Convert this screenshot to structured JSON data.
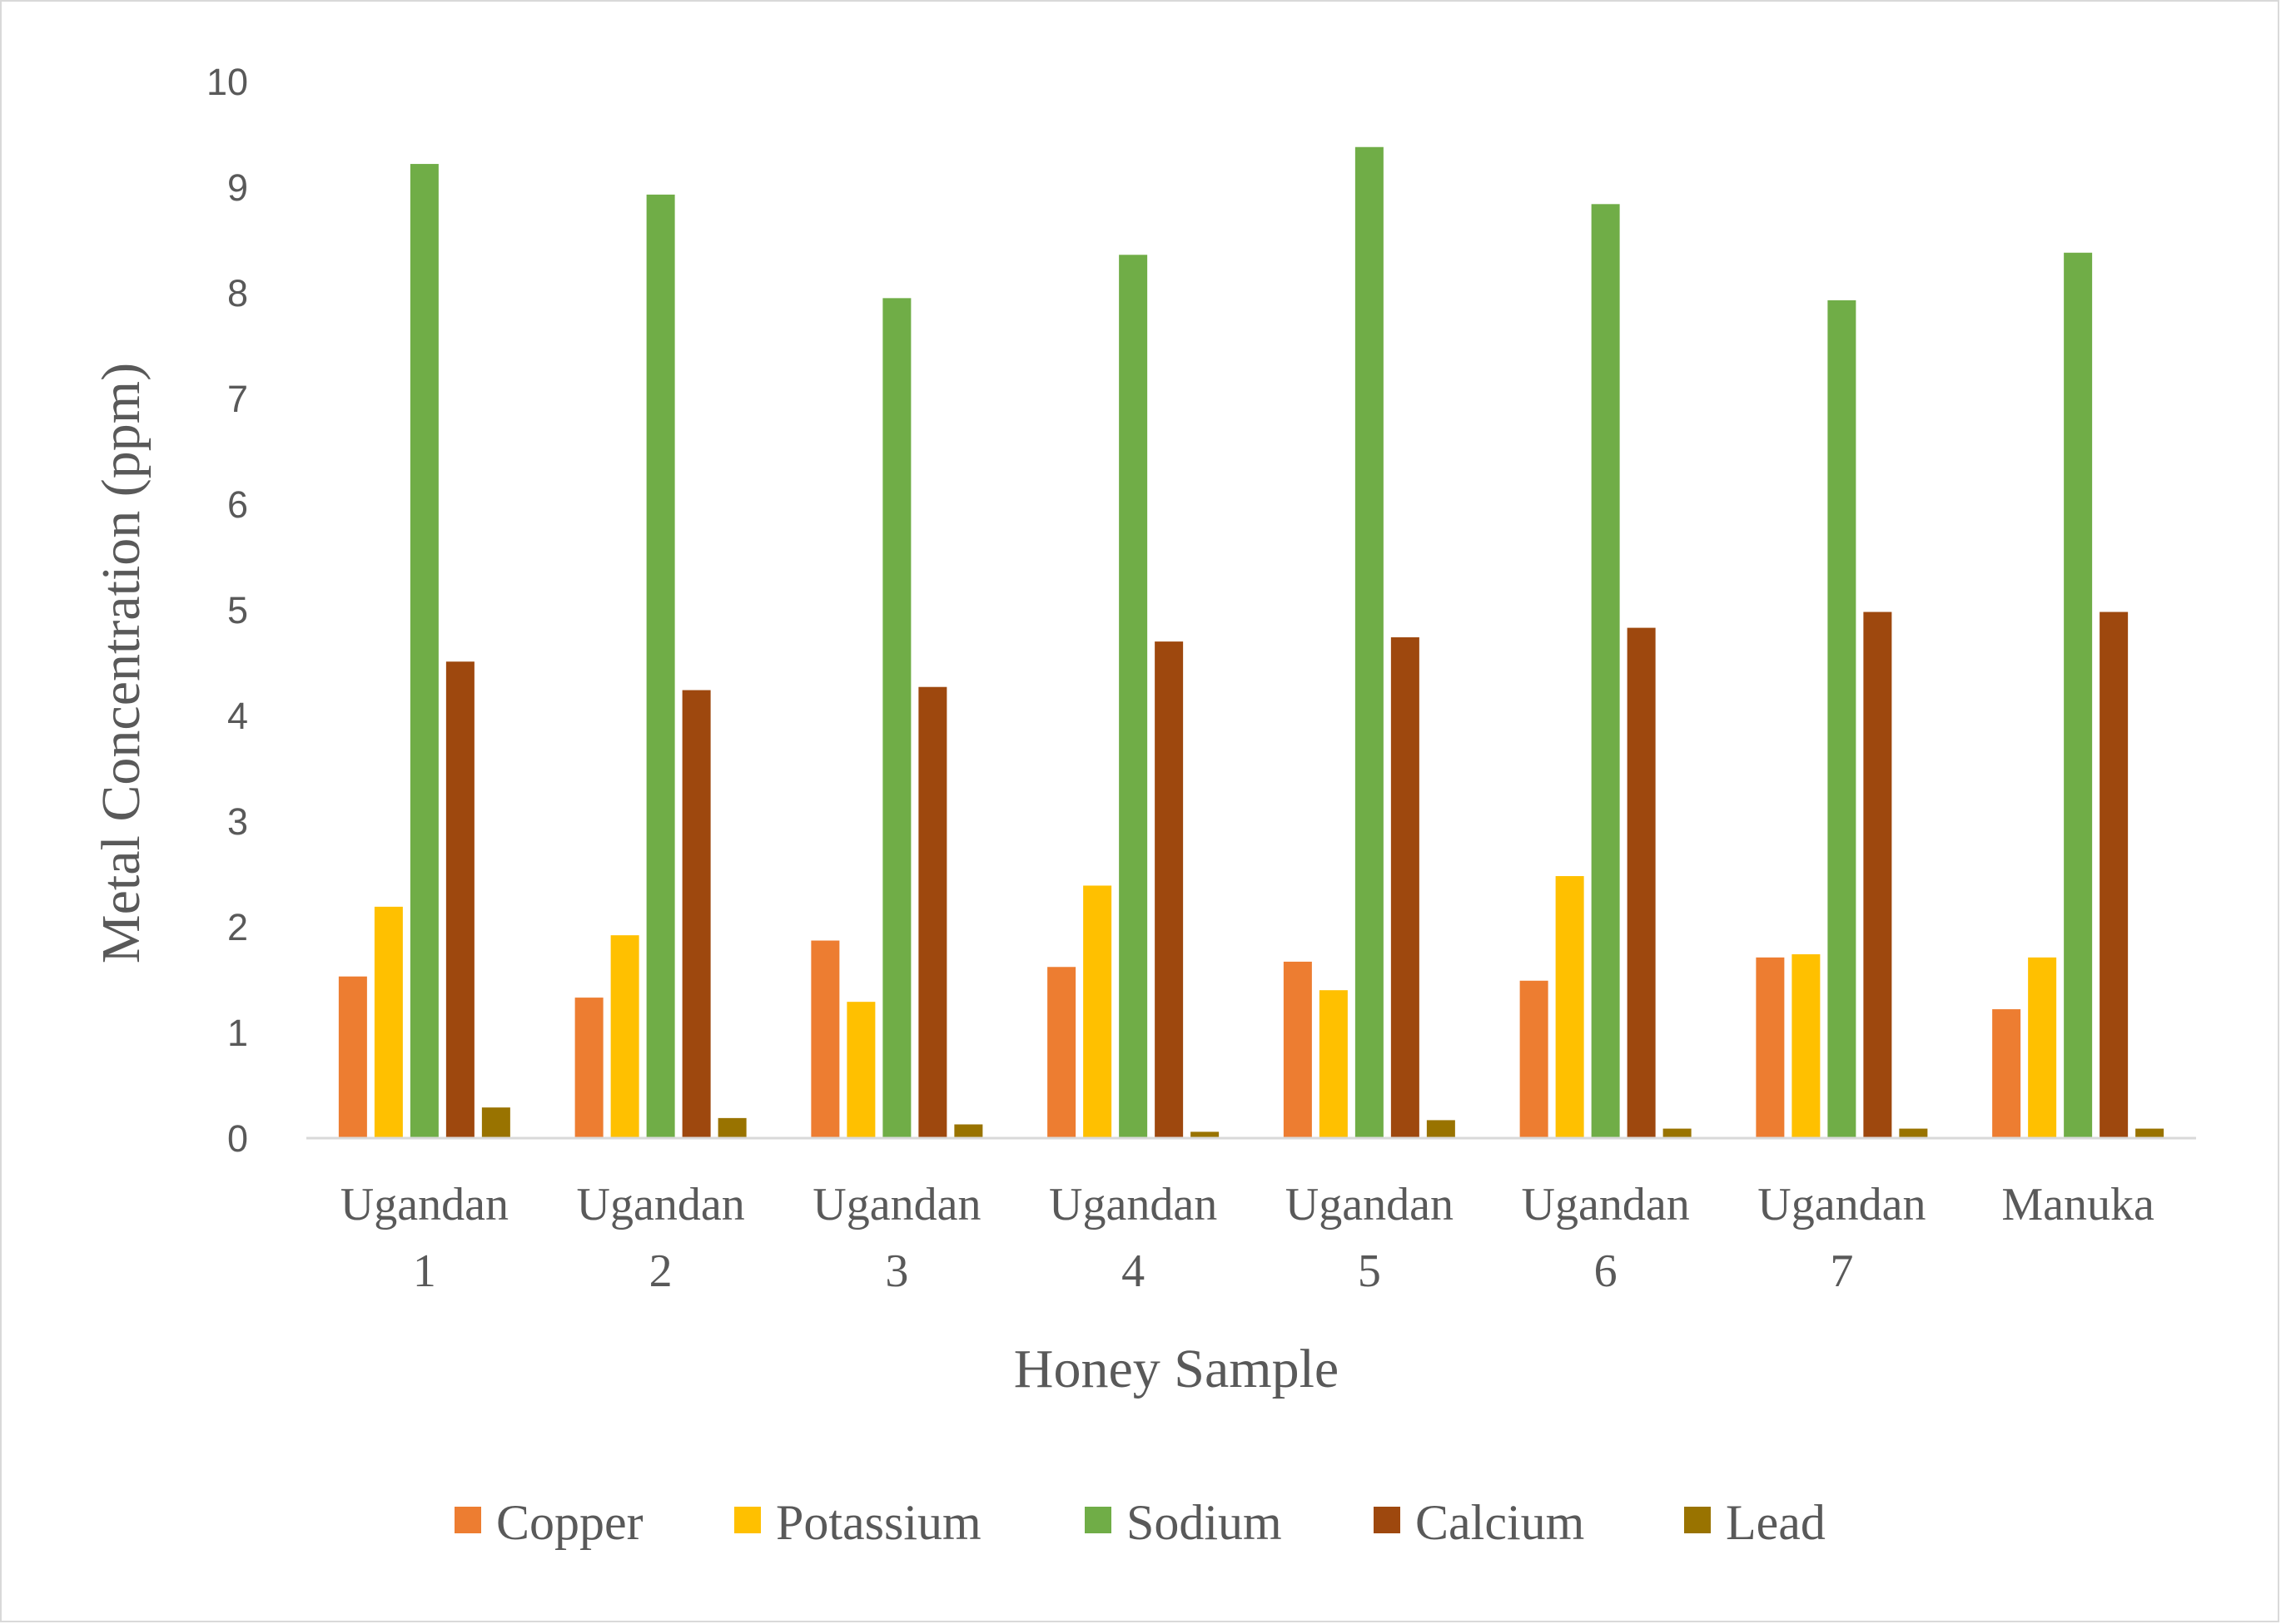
{
  "chart_data": {
    "type": "bar",
    "title": "",
    "xlabel": "Honey Sample",
    "ylabel": "Metal Concentration (ppm)",
    "ylim": [
      0,
      10
    ],
    "yticks": [
      "0",
      "1",
      "2",
      "3",
      "4",
      "5",
      "6",
      "7",
      "8",
      "9",
      "10"
    ],
    "grid": false,
    "legend_position": "bottom",
    "categories": [
      [
        "Ugandan",
        "1"
      ],
      [
        "Ugandan",
        "2"
      ],
      [
        "Ugandan",
        "3"
      ],
      [
        "Ugandan",
        "4"
      ],
      [
        "Ugandan",
        "5"
      ],
      [
        "Ugandan",
        "6"
      ],
      [
        "Ugandan",
        "7"
      ],
      [
        "Manuka"
      ]
    ],
    "series": [
      {
        "name": "Copper",
        "color": "#ED7D31",
        "values": [
          1.53,
          1.33,
          1.87,
          1.62,
          1.67,
          1.49,
          1.71,
          1.22
        ]
      },
      {
        "name": "Potassium",
        "color": "#FFC000",
        "values": [
          2.19,
          1.92,
          1.29,
          2.39,
          1.4,
          2.48,
          1.74,
          1.71
        ]
      },
      {
        "name": "Sodium",
        "color": "#70AD47",
        "values": [
          9.22,
          8.93,
          7.95,
          8.36,
          9.38,
          8.84,
          7.93,
          8.38
        ]
      },
      {
        "name": "Calcium",
        "color": "#9E480E",
        "values": [
          4.51,
          4.24,
          4.27,
          4.7,
          4.74,
          4.83,
          4.98,
          4.98
        ]
      },
      {
        "name": "Lead",
        "color": "#997300",
        "values": [
          0.29,
          0.19,
          0.13,
          0.06,
          0.17,
          0.09,
          0.09,
          0.09
        ]
      }
    ]
  }
}
